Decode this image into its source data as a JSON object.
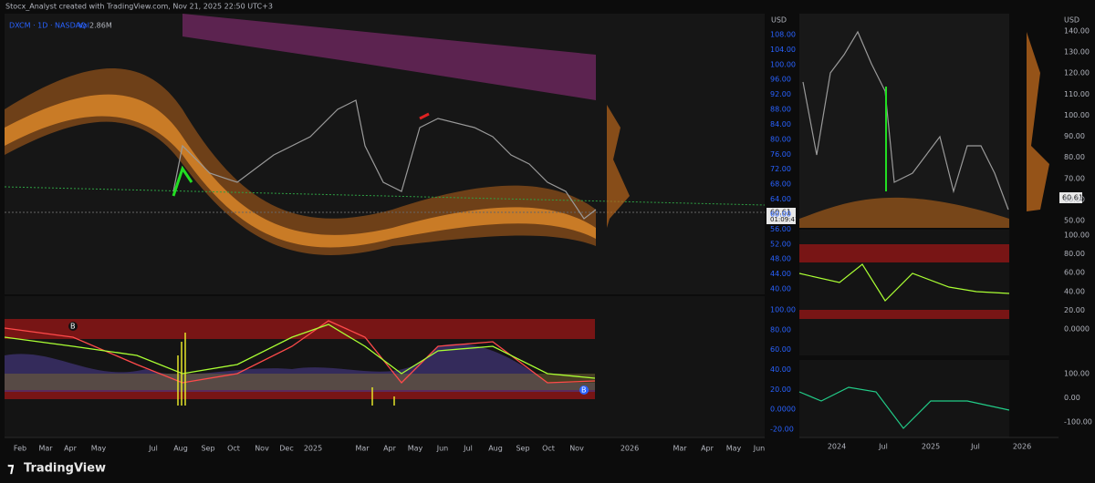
{
  "header": {
    "text": "Stocx_Analyst created with TradingView.com, Nov 21, 2025 22:50 UTC+3"
  },
  "left_panel": {
    "legend": {
      "symbol": "DXCM · 1D · NASDAQ",
      "vol_label": "Vol",
      "vol_value": "2.86M"
    },
    "price_axis": {
      "currency": "USD",
      "ticks": [
        "108.00",
        "104.00",
        "100.00",
        "96.00",
        "92.00",
        "88.00",
        "84.00",
        "80.00",
        "76.00",
        "72.00",
        "68.00",
        "64.00",
        "60.00",
        "56.00",
        "52.00",
        "48.00",
        "44.00",
        "40.00"
      ],
      "last_price": "60.61",
      "countdown": "01:09:41"
    },
    "indicator_axis": {
      "ticks": [
        "100.00",
        "80.00",
        "60.00",
        "40.00",
        "20.00",
        "0.0000",
        "-20.00"
      ]
    },
    "markers": [
      "B",
      "B"
    ],
    "time_axis": [
      "Feb",
      "Mar",
      "Apr",
      "May",
      "Jul",
      "Aug",
      "Sep",
      "Oct",
      "Nov",
      "Dec",
      "2025",
      "Mar",
      "Apr",
      "May",
      "Jun",
      "Jul",
      "Aug",
      "Sep",
      "Oct",
      "Nov",
      "2026",
      "Mar",
      "Apr",
      "May",
      "Jun"
    ]
  },
  "right_panel": {
    "price_axis": {
      "currency": "USD",
      "ticks": [
        "140.00",
        "130.00",
        "120.00",
        "110.00",
        "100.00",
        "90.00",
        "80.00",
        "70.00",
        "60.00",
        "50.00"
      ],
      "last_price": "60.61"
    },
    "indicator1_axis": {
      "ticks": [
        "100.00",
        "80.00",
        "60.00",
        "40.00",
        "20.00",
        "0.0000"
      ]
    },
    "indicator2_axis": {
      "ticks": [
        "100.00",
        "0.00",
        "-100.00"
      ]
    },
    "time_axis": [
      "2024",
      "Jul",
      "2025",
      "Jul",
      "2026"
    ]
  },
  "footer": {
    "brand": "TradingView"
  }
}
